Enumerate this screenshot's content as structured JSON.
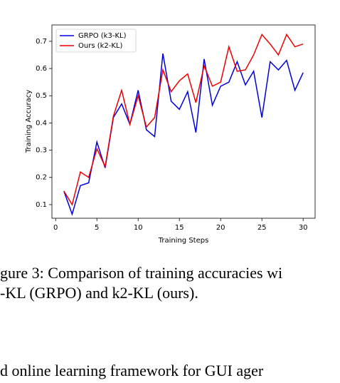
{
  "chart_data": {
    "type": "line",
    "xlabel": "Training Steps",
    "ylabel": "Training Accuracy",
    "x": [
      1,
      2,
      3,
      4,
      5,
      6,
      7,
      8,
      9,
      10,
      11,
      12,
      13,
      14,
      15,
      16,
      17,
      18,
      19,
      20,
      21,
      22,
      23,
      24,
      25,
      26,
      27,
      28,
      29,
      30
    ],
    "series": [
      {
        "name": "GRPO (k3-KL)",
        "color": "#0000dd",
        "values": [
          0.15,
          0.065,
          0.17,
          0.18,
          0.33,
          0.235,
          0.42,
          0.47,
          0.395,
          0.52,
          0.375,
          0.35,
          0.655,
          0.48,
          0.45,
          0.515,
          0.365,
          0.635,
          0.465,
          0.535,
          0.55,
          0.625,
          0.54,
          0.59,
          0.42,
          0.625,
          0.595,
          0.63,
          0.52,
          0.585
        ]
      },
      {
        "name": "Ours (k2-KL)",
        "color": "#ee0000",
        "values": [
          0.15,
          0.1,
          0.22,
          0.2,
          0.305,
          0.24,
          0.425,
          0.52,
          0.395,
          0.5,
          0.385,
          0.42,
          0.595,
          0.515,
          0.555,
          0.58,
          0.475,
          0.61,
          0.535,
          0.55,
          0.68,
          0.59,
          0.595,
          0.65,
          0.725,
          0.69,
          0.65,
          0.725,
          0.68,
          0.69
        ]
      }
    ],
    "xlim": [
      -0.45,
      31.45
    ],
    "xticks": [
      0,
      5,
      10,
      15,
      20,
      25,
      30
    ],
    "ylim": [
      0.05,
      0.76
    ],
    "yticks": [
      0.1,
      0.2,
      0.3,
      0.4,
      0.5,
      0.6,
      0.7
    ],
    "legend": "upper left"
  },
  "caption": {
    "line1": "gure 3: Comparison of training accuracies wi",
    "line2": "-KL (GRPO) and k2-KL (ours)."
  },
  "body": {
    "line1": "d online learning framework for GUI ager"
  }
}
